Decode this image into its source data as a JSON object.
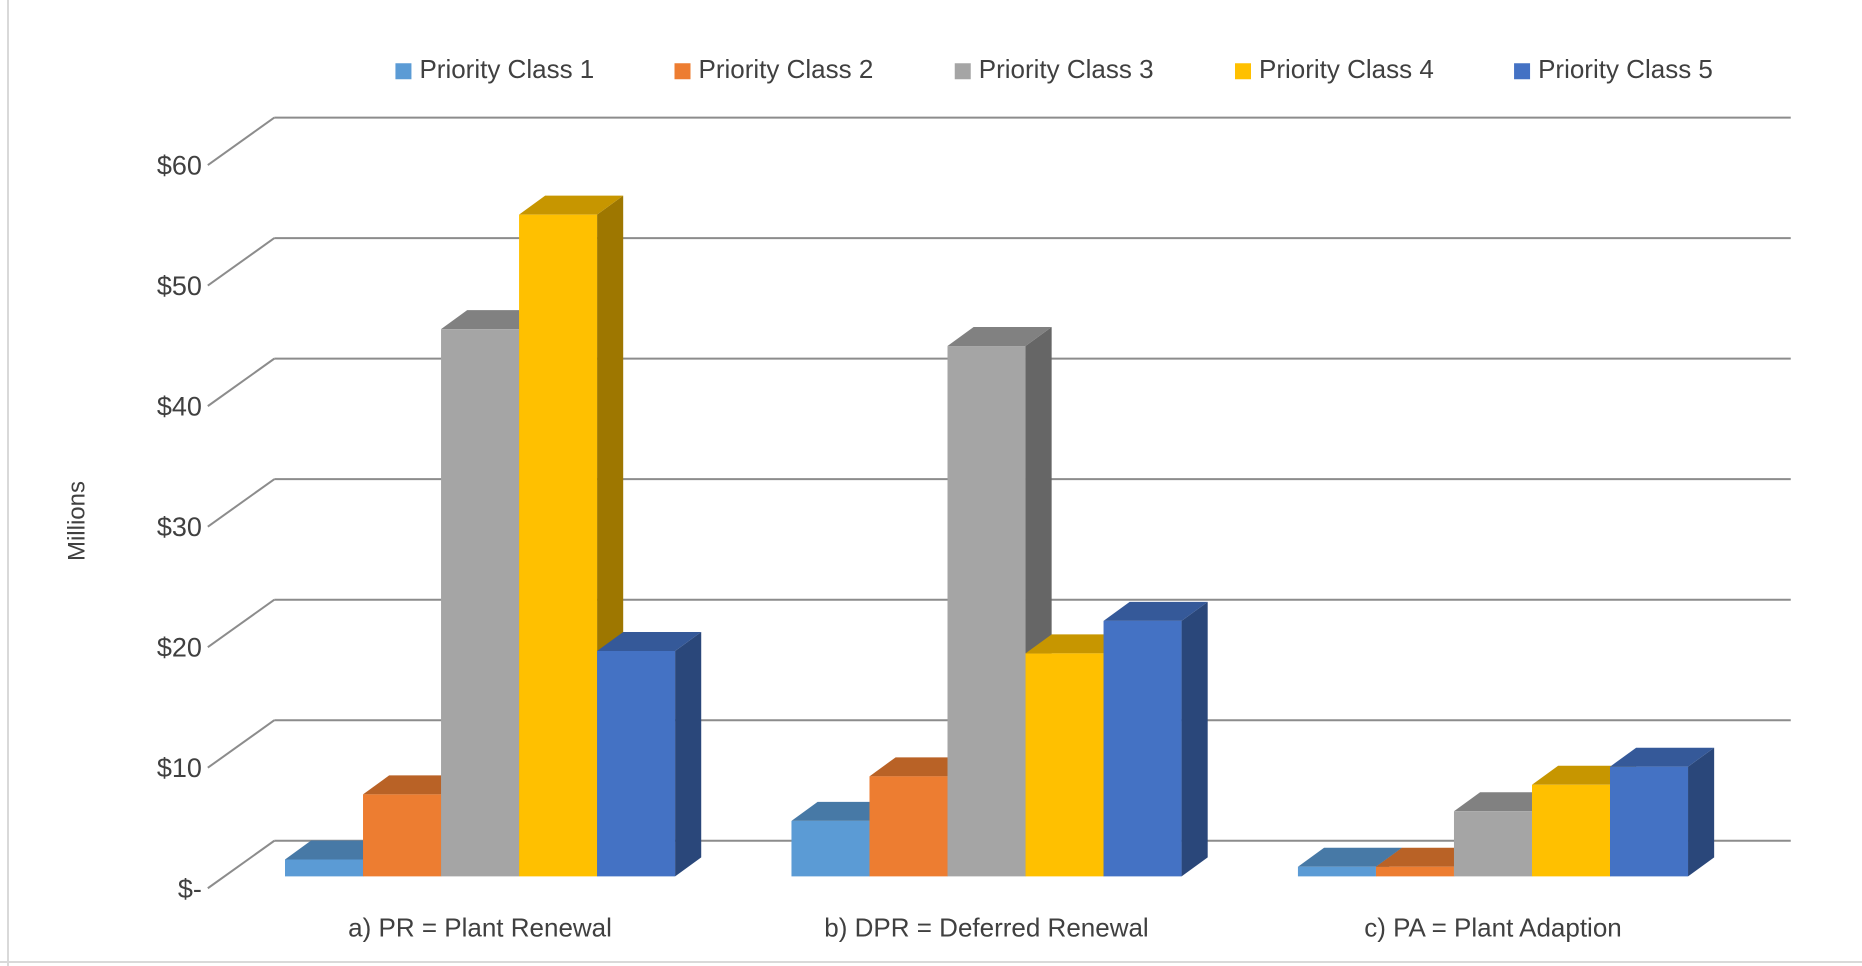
{
  "chart_data": {
    "type": "bar3d",
    "y_axis_label": "Millions",
    "categories": [
      "a) PR = Plant Renewal",
      "b) DPR = Deferred Renewal",
      "c) PA = Plant Adaption"
    ],
    "series": [
      {
        "name": "Priority Class 1",
        "color": "#5b9bd5",
        "values": [
          1.4,
          4.6,
          0.8
        ]
      },
      {
        "name": "Priority Class 2",
        "color": "#ed7d31",
        "values": [
          6.8,
          8.3,
          0.8
        ]
      },
      {
        "name": "Priority Class 3",
        "color": "#a5a5a5",
        "values": [
          45.4,
          44.0,
          5.4
        ]
      },
      {
        "name": "Priority Class 4",
        "color": "#ffc000",
        "values": [
          54.9,
          18.5,
          7.6
        ]
      },
      {
        "name": "Priority Class 5",
        "color": "#4472c4",
        "values": [
          18.7,
          21.2,
          9.1
        ]
      }
    ],
    "ylim": [
      0,
      60
    ],
    "yticks": [
      {
        "value": 0,
        "label": "$-"
      },
      {
        "value": 10,
        "label": "$10"
      },
      {
        "value": 20,
        "label": "$20"
      },
      {
        "value": 30,
        "label": "$30"
      },
      {
        "value": 40,
        "label": "$40"
      },
      {
        "value": 50,
        "label": "$50"
      },
      {
        "value": 60,
        "label": "$60"
      }
    ],
    "grid": true,
    "legend": "top"
  }
}
